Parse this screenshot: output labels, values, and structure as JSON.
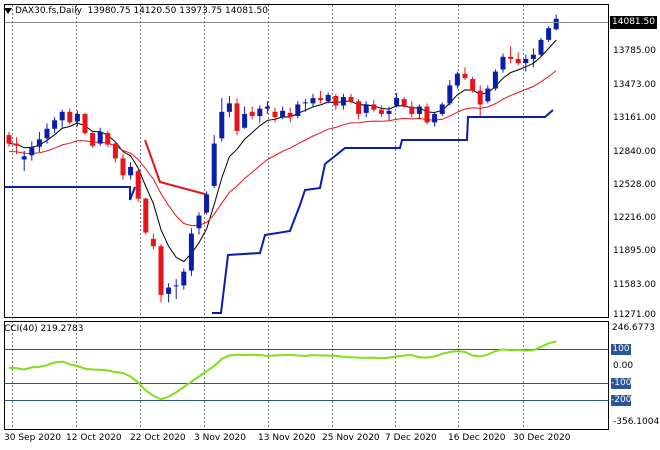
{
  "header": {
    "symbol": "DAX30.fs,Daily",
    "ohlc": "13980.75 14120.50 13973.75 14081.50"
  },
  "current_price": "14081.50",
  "price_axis": [
    "13785.00",
    "13473.00",
    "13161.00",
    "12840.00",
    "12528.00",
    "12216.00",
    "11895.00",
    "11583.00",
    "11271.00"
  ],
  "cci": {
    "label": "CCI(40) 219.2783",
    "axis_top": "246.6773",
    "levels": [
      "100",
      "0.00",
      "-100",
      "-200"
    ],
    "axis_bottom": "-356.1004"
  },
  "date_axis": [
    "30 Sep 2020",
    "12 Oct 2020",
    "22 Oct 2020",
    "3 Nov 2020",
    "13 Nov 2020",
    "25 Nov 2020",
    "7 Dec 2020",
    "16 Dec 2020",
    "30 Dec 2020"
  ],
  "colors": {
    "up": "#0a1ea8",
    "down": "#e8141a",
    "ma_fast": "#000000",
    "ma_slow": "#e8141a",
    "stop": "#0a1ea8",
    "cci": "#7fe01a"
  },
  "chart_data": {
    "type": "candlestick",
    "ylim": [
      11271,
      14200
    ],
    "candles": [
      [
        12980,
        13010,
        12870,
        12900
      ],
      [
        12900,
        12960,
        12800,
        12880
      ],
      [
        12750,
        12830,
        12640,
        12780
      ],
      [
        12790,
        12920,
        12740,
        12870
      ],
      [
        12870,
        13010,
        12820,
        12940
      ],
      [
        12950,
        13090,
        12900,
        13040
      ],
      [
        13040,
        13150,
        13000,
        13120
      ],
      [
        13120,
        13220,
        13050,
        13200
      ],
      [
        13200,
        13230,
        13080,
        13100
      ],
      [
        13110,
        13210,
        13060,
        13180
      ],
      [
        13180,
        13190,
        12980,
        13000
      ],
      [
        13000,
        13010,
        12860,
        12880
      ],
      [
        12900,
        13050,
        12880,
        13010
      ],
      [
        13000,
        13020,
        12870,
        12890
      ],
      [
        12900,
        12920,
        12720,
        12760
      ],
      [
        12760,
        12800,
        12560,
        12600
      ],
      [
        12600,
        12720,
        12560,
        12680
      ],
      [
        12640,
        12660,
        12350,
        12380
      ],
      [
        12380,
        12390,
        12040,
        12060
      ],
      [
        12000,
        12050,
        11900,
        11930
      ],
      [
        11930,
        11950,
        11400,
        11470
      ],
      [
        11480,
        11580,
        11400,
        11540
      ],
      [
        11560,
        11620,
        11430,
        11560
      ],
      [
        11560,
        11720,
        11520,
        11690
      ],
      [
        11700,
        12100,
        11650,
        12050
      ],
      [
        12100,
        12250,
        12040,
        12220
      ],
      [
        12250,
        12450,
        12230,
        12420
      ],
      [
        12500,
        12980,
        12480,
        12900
      ],
      [
        12950,
        13330,
        12920,
        13200
      ],
      [
        13200,
        13350,
        13150,
        13280
      ],
      [
        13280,
        13330,
        12980,
        13020
      ],
      [
        13050,
        13250,
        13040,
        13180
      ],
      [
        13200,
        13250,
        13130,
        13160
      ],
      [
        13160,
        13260,
        13100,
        13230
      ],
      [
        13230,
        13300,
        13180,
        13250
      ],
      [
        13200,
        13240,
        13100,
        13150
      ],
      [
        13150,
        13250,
        13130,
        13210
      ],
      [
        13190,
        13240,
        13100,
        13150
      ],
      [
        13160,
        13300,
        13140,
        13270
      ],
      [
        13280,
        13320,
        13200,
        13290
      ],
      [
        13280,
        13370,
        13240,
        13330
      ],
      [
        13330,
        13400,
        13280,
        13310
      ],
      [
        13300,
        13380,
        13280,
        13360
      ],
      [
        13350,
        13370,
        13220,
        13260
      ],
      [
        13260,
        13370,
        13220,
        13340
      ],
      [
        13340,
        13370,
        13280,
        13300
      ],
      [
        13300,
        13320,
        13130,
        13180
      ],
      [
        13190,
        13300,
        13150,
        13270
      ],
      [
        13270,
        13310,
        13200,
        13220
      ],
      [
        13220,
        13260,
        13150,
        13180
      ],
      [
        13180,
        13250,
        13120,
        13210
      ],
      [
        13260,
        13380,
        13240,
        13330
      ],
      [
        13320,
        13340,
        13240,
        13260
      ],
      [
        13250,
        13300,
        13150,
        13180
      ],
      [
        13180,
        13270,
        13130,
        13250
      ],
      [
        13250,
        13280,
        13080,
        13100
      ],
      [
        13100,
        13200,
        13060,
        13180
      ],
      [
        13180,
        13290,
        13160,
        13270
      ],
      [
        13280,
        13500,
        13260,
        13450
      ],
      [
        13450,
        13580,
        13420,
        13560
      ],
      [
        13560,
        13620,
        13500,
        13520
      ],
      [
        13510,
        13530,
        13380,
        13400
      ],
      [
        13400,
        13450,
        13150,
        13270
      ],
      [
        13300,
        13450,
        13280,
        13420
      ],
      [
        13420,
        13600,
        13400,
        13580
      ],
      [
        13600,
        13750,
        13570,
        13720
      ],
      [
        13720,
        13820,
        13660,
        13700
      ],
      [
        13700,
        13760,
        13640,
        13660
      ],
      [
        13660,
        13740,
        13580,
        13700
      ],
      [
        13700,
        13800,
        13620,
        13740
      ],
      [
        13740,
        13900,
        13720,
        13880
      ],
      [
        13880,
        14010,
        13860,
        13990
      ],
      [
        13980,
        14120,
        13970,
        14080
      ]
    ]
  }
}
